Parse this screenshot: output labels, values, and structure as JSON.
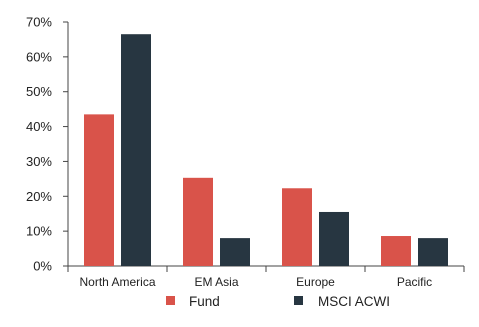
{
  "chart_data": {
    "type": "bar",
    "title": "",
    "xlabel": "",
    "ylabel": "",
    "categories": [
      "North America",
      "EM Asia",
      "Europe",
      "Pacific"
    ],
    "series": [
      {
        "name": "Fund",
        "color": "#d9534a",
        "values": [
          43.5,
          25.3,
          22.3,
          8.6
        ]
      },
      {
        "name": "MSCI ACWI",
        "color": "#273641",
        "values": [
          66.5,
          8.0,
          15.5,
          8.0
        ]
      }
    ],
    "ylim": [
      0,
      70
    ],
    "yticks": [
      0,
      10,
      20,
      30,
      40,
      50,
      60,
      70
    ],
    "ytick_labels": [
      "0%",
      "10%",
      "20%",
      "30%",
      "40%",
      "50%",
      "60%",
      "70%"
    ],
    "grid": false,
    "legend": "bottom-center"
  }
}
